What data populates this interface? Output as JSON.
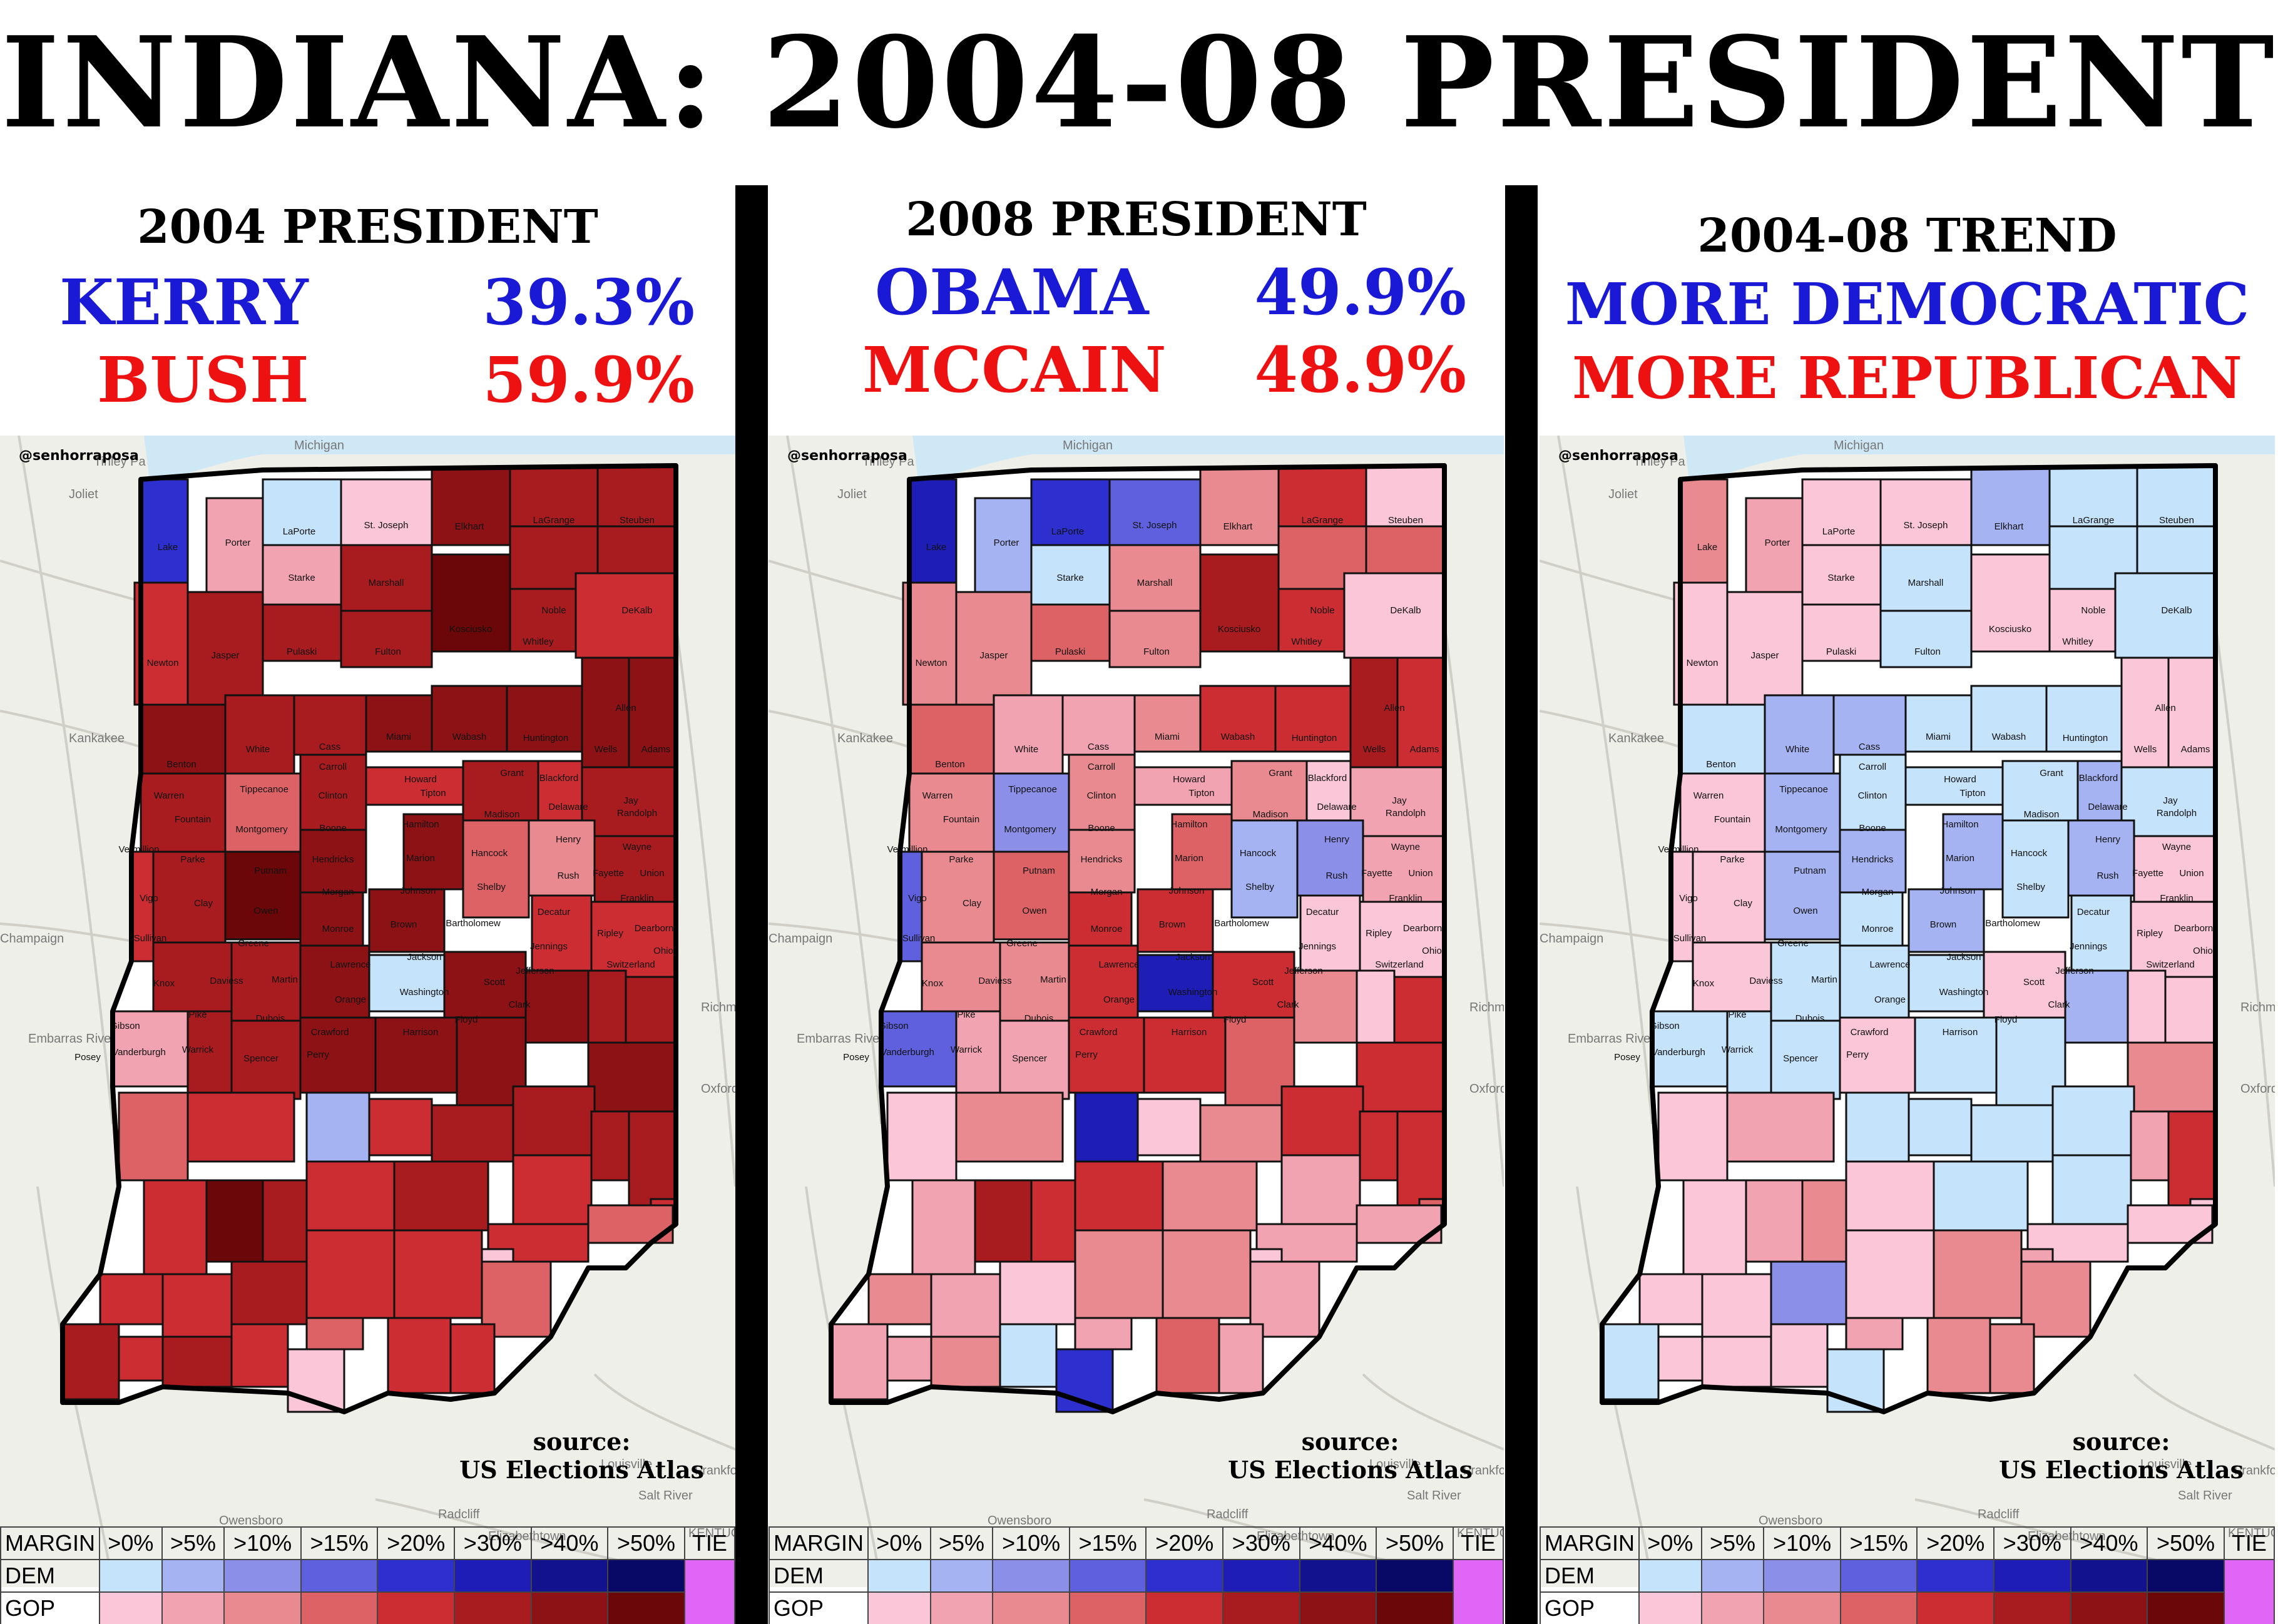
{
  "title": "INDIANA: 2004-08 PRESIDENT",
  "credit": "@senhorraposa",
  "panels": [
    {
      "title": "2004 PRESIDENT",
      "dem_name": "KERRY",
      "dem_pct": "39.3%",
      "gop_name": "BUSH",
      "gop_pct": "59.9%",
      "source_1": "source:",
      "source_2": "US Elections Atlas"
    },
    {
      "title": "2008 PRESIDENT",
      "dem_name": "OBAMA",
      "dem_pct": "49.9%",
      "gop_name": "MCCAIN",
      "gop_pct": "48.9%",
      "source_1": "source:",
      "source_2": "US Elections Atlas"
    },
    {
      "title": "2004-08 TREND",
      "dem_line": "MORE DEMOCRATIC",
      "gop_line": "MORE REPUBLICAN",
      "source_1": "source:",
      "source_2": "US Elections Atlas"
    }
  ],
  "basemap_labels": [
    "Michigan",
    "Tinley Pa",
    "Joliet",
    "Kankakee",
    "Champaign",
    "Oxford",
    "Richmond",
    "Frankfort",
    "Louisville",
    "Radcliff",
    "Elizabethtown",
    "Owensboro",
    "Salt River",
    "Embarras River",
    "KENTUCKY"
  ],
  "legend": {
    "margin_label": "MARGIN",
    "dem_label": "DEM",
    "gop_label": "GOP",
    "tie_label": "TIE",
    "bins": [
      ">0%",
      ">5%",
      ">10%",
      ">15%",
      ">20%",
      ">30%",
      ">40%",
      ">50%"
    ],
    "dem_colors": [
      "#c5e3fb",
      "#a5b3f2",
      "#8b8fe8",
      "#5f60dd",
      "#2e2fcf",
      "#1e1db5",
      "#12128f",
      "#080866"
    ],
    "gop_colors": [
      "#fbc6d8",
      "#f2a3b1",
      "#e98a90",
      "#dd6266",
      "#cc2d33",
      "#a81c20",
      "#8c1216",
      "#6b0708"
    ],
    "tie_color": "#df66f7"
  },
  "county_names": [
    "Lake",
    "Porter",
    "LaPorte",
    "St. Joseph",
    "Elkhart",
    "LaGrange",
    "Steuben",
    "Newton",
    "Jasper",
    "Starke",
    "Marshall",
    "Kosciusko",
    "Noble",
    "DeKalb",
    "Pulaski",
    "Fulton",
    "Whitley",
    "Allen",
    "Benton",
    "White",
    "Cass",
    "Miami",
    "Wabash",
    "Huntington",
    "Wells",
    "Adams",
    "Warren",
    "Tippecanoe",
    "Carroll",
    "Howard",
    "Grant",
    "Blackford",
    "Jay",
    "Fountain",
    "Clinton",
    "Tipton",
    "Madison",
    "Delaware",
    "Randolph",
    "Vermillion",
    "Montgomery",
    "Boone",
    "Hamilton",
    "Henry",
    "Wayne",
    "Parke",
    "Putnam",
    "Hendricks",
    "Marion",
    "Hancock",
    "Rush",
    "Fayette",
    "Union",
    "Vigo",
    "Clay",
    "Owen",
    "Morgan",
    "Johnson",
    "Shelby",
    "Franklin",
    "Sullivan",
    "Greene",
    "Monroe",
    "Brown",
    "Bartholomew",
    "Decatur",
    "Dearborn",
    "Ripley",
    "Jennings",
    "Ohio",
    "Knox",
    "Daviess",
    "Martin",
    "Lawrence",
    "Jackson",
    "Jefferson",
    "Switzerland",
    "Scott",
    "Orange",
    "Washington",
    "Clark",
    "Gibson",
    "Pike",
    "Dubois",
    "Crawford",
    "Floyd",
    "Harrison",
    "Posey",
    "Vanderburgh",
    "Warrick",
    "Spencer",
    "Perry"
  ],
  "county_colors": {
    "2004": [
      "#2e2fcf",
      "#f2a3b1",
      "#c5e3fb",
      "#fbc6d8",
      "#8c1216",
      "#a81c20",
      "#a81c20",
      "#cc2d33",
      "#a81c20",
      "#f2a3b1",
      "#a81c20",
      "#6b0708",
      "#a81c20",
      "#a81c20",
      "#a81c20",
      "#a81c20",
      "#a81c20",
      "#cc2d33",
      "#8c1216",
      "#a81c20",
      "#a81c20",
      "#8c1216",
      "#8c1216",
      "#8c1216",
      "#8c1216",
      "#8c1216",
      "#a81c20",
      "#dd6266",
      "#a81c20",
      "#cc2d33",
      "#a81c20",
      "#cc2d33",
      "#a81c20",
      "#a81c20",
      "#8c1216",
      "#8c1216",
      "#dd6266",
      "#e98a90",
      "#a81c20",
      "#cc2d33",
      "#6b0708",
      "#8c1216",
      "#8c1216",
      "#cc2d33",
      "#cc2d33",
      "#a81c20",
      "#a81c20",
      "#8c1216",
      "#c5e3fb",
      "#8c1216",
      "#8c1216",
      "#a81c20",
      "#a81c20",
      "#f2a3b1",
      "#a81c20",
      "#a81c20",
      "#8c1216",
      "#8c1216",
      "#8c1216",
      "#8c1216",
      "#dd6266",
      "#cc2d33",
      "#a5b3f2",
      "#cc2d33",
      "#a81c20",
      "#a81c20",
      "#a81c20",
      "#a81c20",
      "#cc2d33",
      "#cc2d33",
      "#cc2d33",
      "#6b0708",
      "#a81c20",
      "#cc2d33",
      "#a81c20",
      "#cc2d33",
      "#dd6266",
      "#fbc6d8",
      "#cc2d33",
      "#cc2d33",
      "#dd6266",
      "#cc2d33",
      "#cc2d33",
      "#a81c20",
      "#dd6266",
      "#cc2d33",
      "#cc2d33",
      "#a81c20",
      "#cc2d33",
      "#a81c20",
      "#cc2d33",
      "#fbc6d8"
    ],
    "2008": [
      "#1e1db5",
      "#a5b3f2",
      "#2e2fcf",
      "#5f60dd",
      "#e98a90",
      "#cc2d33",
      "#fbc6d8",
      "#e98a90",
      "#e98a90",
      "#c5e3fb",
      "#e98a90",
      "#a81c20",
      "#dd6266",
      "#dd6266",
      "#dd6266",
      "#e98a90",
      "#cc2d33",
      "#fbc6d8",
      "#dd6266",
      "#f2a3b1",
      "#f2a3b1",
      "#e98a90",
      "#cc2d33",
      "#cc2d33",
      "#a81c20",
      "#cc2d33",
      "#e98a90",
      "#8b8fe8",
      "#e98a90",
      "#f2a3b1",
      "#e98a90",
      "#fbc6d8",
      "#f2a3b1",
      "#e98a90",
      "#e98a90",
      "#dd6266",
      "#a5b3f2",
      "#8b8fe8",
      "#f2a3b1",
      "#5f60dd",
      "#dd6266",
      "#cc2d33",
      "#cc2d33",
      "#fbc6d8",
      "#fbc6d8",
      "#e98a90",
      "#e98a90",
      "#cc2d33",
      "#1e1db5",
      "#cc2d33",
      "#e98a90",
      "#fbc6d8",
      "#cc2d33",
      "#5f60dd",
      "#f2a3b1",
      "#f2a3b1",
      "#cc2d33",
      "#cc2d33",
      "#dd6266",
      "#cc2d33",
      "#fbc6d8",
      "#e98a90",
      "#1e1db5",
      "#fbc6d8",
      "#e98a90",
      "#cc2d33",
      "#cc2d33",
      "#cc2d33",
      "#f2a3b1",
      "#dd6266",
      "#f2a3b1",
      "#a81c20",
      "#cc2d33",
      "#cc2d33",
      "#e98a90",
      "#f2a3b1",
      "#f2a3b1",
      "#fbc6d8",
      "#e98a90",
      "#e98a90",
      "#f2a3b1",
      "#e98a90",
      "#f2a3b1",
      "#fbc6d8",
      "#f2a3b1",
      "#f2a3b1",
      "#dd6266",
      "#f2a3b1",
      "#f2a3b1",
      "#e98a90",
      "#c5e3fb",
      "#2e2fcf"
    ],
    "trend": [
      "#e98a90",
      "#f2a3b1",
      "#fbc6d8",
      "#fbc6d8",
      "#a5b3f2",
      "#c5e3fb",
      "#c5e3fb",
      "#fbc6d8",
      "#fbc6d8",
      "#fbc6d8",
      "#c5e3fb",
      "#fbc6d8",
      "#c5e3fb",
      "#c5e3fb",
      "#fbc6d8",
      "#c5e3fb",
      "#fbc6d8",
      "#c5e3fb",
      "#c5e3fb",
      "#a5b3f2",
      "#a5b3f2",
      "#c5e3fb",
      "#c5e3fb",
      "#c5e3fb",
      "#fbc6d8",
      "#fbc6d8",
      "#fbc6d8",
      "#a5b3f2",
      "#c5e3fb",
      "#c5e3fb",
      "#c5e3fb",
      "#a5b3f2",
      "#c5e3fb",
      "#fbc6d8",
      "#a5b3f2",
      "#a5b3f2",
      "#c5e3fb",
      "#a5b3f2",
      "#fbc6d8",
      "#fbc6d8",
      "#a5b3f2",
      "#c5e3fb",
      "#a5b3f2",
      "#c5e3fb",
      "#fbc6d8",
      "#fbc6d8",
      "#c5e3fb",
      "#c5e3fb",
      "#c5e3fb",
      "#fbc6d8",
      "#a5b3f2",
      "#fbc6d8",
      "#fbc6d8",
      "#c5e3fb",
      "#c5e3fb",
      "#c5e3fb",
      "#fbc6d8",
      "#c5e3fb",
      "#c5e3fb",
      "#e98a90",
      "#fbc6d8",
      "#f2a3b1",
      "#c5e3fb",
      "#c5e3fb",
      "#c5e3fb",
      "#c5e3fb",
      "#cc2d33",
      "#f2a3b1",
      "#c5e3fb",
      "#fbc6d8",
      "#fbc6d8",
      "#f2a3b1",
      "#e98a90",
      "#fbc6d8",
      "#c5e3fb",
      "#fbc6d8",
      "#fbc6d8",
      "#f2a3b1",
      "#fbc6d8",
      "#e98a90",
      "#e98a90",
      "#fbc6d8",
      "#fbc6d8",
      "#8b8fe8",
      "#f2a3b1",
      "#e98a90",
      "#e98a90",
      "#c5e3fb",
      "#fbc6d8",
      "#fbc6d8",
      "#fbc6d8",
      "#c5e3fb"
    ]
  }
}
